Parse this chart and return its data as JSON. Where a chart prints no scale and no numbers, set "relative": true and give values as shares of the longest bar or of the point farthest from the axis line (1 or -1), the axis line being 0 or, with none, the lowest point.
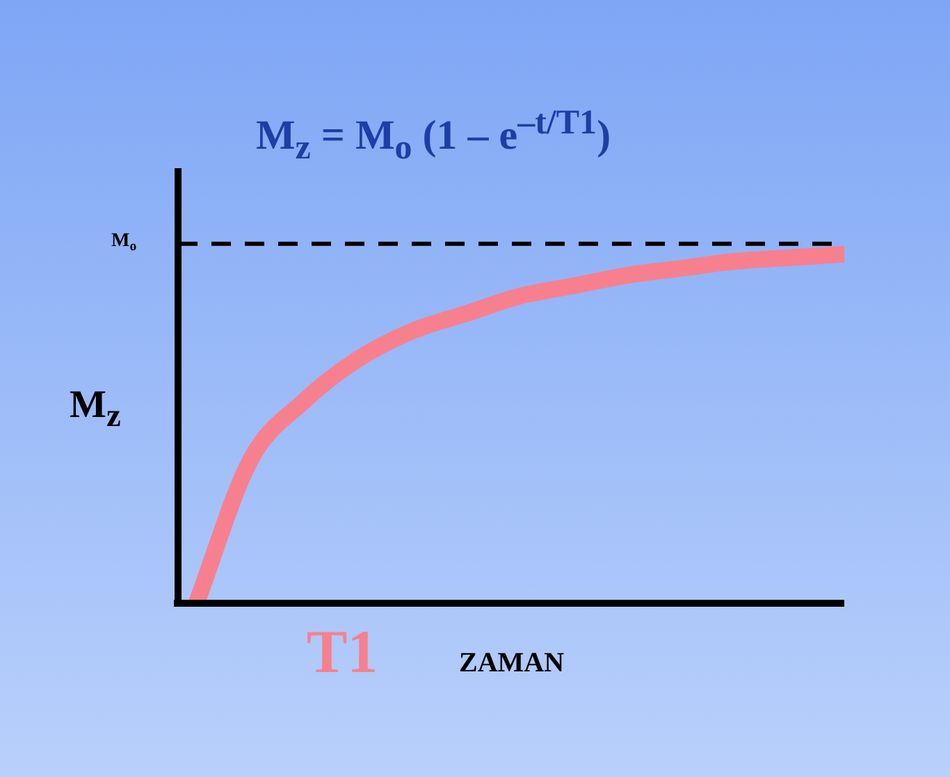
{
  "chart_data": {
    "type": "line",
    "relative": true,
    "title": "M$_{z}$ = M$_{o}$ (1 – e$^{–t/T1}$)",
    "xlabel": "ZAMAN",
    "ylabel": "M$_{z}$",
    "categories": [
      null,
      null,
      null,
      null,
      null,
      null,
      null,
      null,
      null,
      null,
      null,
      null,
      null
    ],
    "series": [
      {
        "color": "#f7808f",
        "values": [
          0,
          0.41,
          0.58,
          0.7,
          0.78,
          0.83,
          0.88,
          0.91,
          0.94,
          0.96,
          0.98,
          0.99,
          1
        ]
      }
    ],
    "ref_lines": [
      {
        "axis": "y",
        "value": 1.03,
        "label": "M$_{o}$",
        "color": "#000000",
        "line_style": "dashed"
      }
    ],
    "annotations": [
      "T1"
    ],
    "marker": "none",
    "line_style": "solid"
  }
}
